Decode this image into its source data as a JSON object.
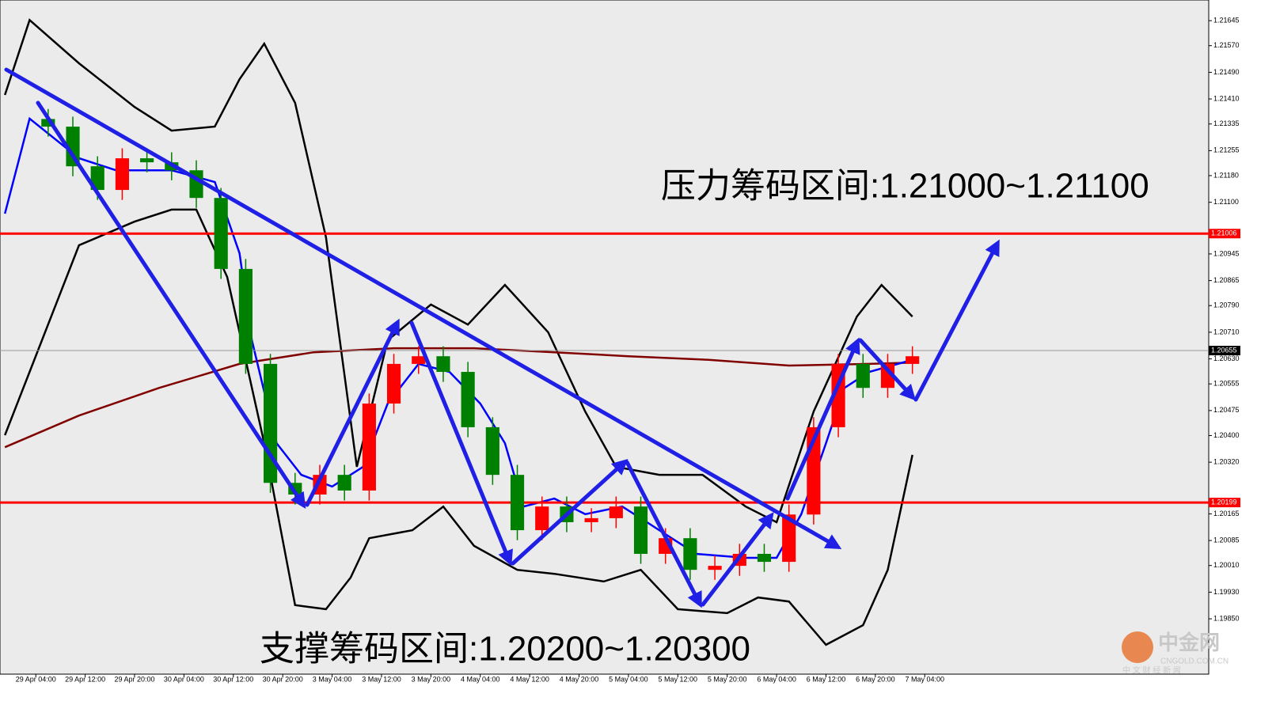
{
  "chart_data": {
    "type": "candlestick",
    "ylim": [
      1.21707,
      1.19684
    ],
    "xlim": [
      -5.8,
      190
    ],
    "yticks": [
      1.21645,
      {
        "value": 1.2157,
        "label": "1.21570"
      },
      {
        "value": 1.2149,
        "label": "1.21490"
      },
      {
        "value": 1.2141,
        "label": "1.21410"
      },
      1.21335,
      1.21255,
      {
        "value": 1.2118,
        "label": "1.21180"
      },
      {
        "value": 1.211,
        "label": "1.21100"
      },
      1.20945,
      1.20865,
      {
        "value": 1.2079,
        "label": "1.20790"
      },
      {
        "value": 1.2071,
        "label": "1.20710"
      },
      {
        "value": 1.2063,
        "label": "1.20630"
      },
      1.20555,
      1.20475,
      {
        "value": 1.204,
        "label": "1.20400"
      },
      {
        "value": 1.2032,
        "label": "1.20320"
      },
      1.20165,
      1.20085,
      {
        "value": 1.2001,
        "label": "1.20010"
      },
      {
        "value": 1.1993,
        "label": "1.19930"
      },
      {
        "value": 1.1985,
        "label": "1.19850"
      }
    ],
    "xticks": [
      {
        "value": 0,
        "label": "29 Apr 04:00"
      },
      {
        "value": 8,
        "label": "29 Apr 12:00"
      },
      {
        "value": 16,
        "label": "29 Apr 20:00"
      },
      {
        "value": 24,
        "label": "30 Apr 04:00"
      },
      {
        "value": 32,
        "label": "30 Apr 12:00"
      },
      {
        "value": 40,
        "label": "30 Apr 20:00"
      },
      {
        "value": 48,
        "label": "3 May 04:00"
      },
      {
        "value": 56,
        "label": "3 May 12:00"
      },
      {
        "value": 64,
        "label": "3 May 20:00"
      },
      {
        "value": 72,
        "label": "4 May 04:00"
      },
      {
        "value": 80,
        "label": "4 May 12:00"
      },
      {
        "value": 88,
        "label": "4 May 20:00"
      },
      {
        "value": 96,
        "label": "5 May 04:00"
      },
      {
        "value": 104,
        "label": "5 May 12:00"
      },
      {
        "value": 112,
        "label": "5 May 20:00"
      },
      {
        "value": 120,
        "label": "6 May 04:00"
      },
      {
        "value": 128,
        "label": "6 May 12:00"
      },
      {
        "value": 136,
        "label": "6 May 20:00"
      },
      {
        "value": 144,
        "label": "7 May 04:00"
      }
    ],
    "up_color": "#ff0000",
    "down_color": "#008000",
    "candles": {
      "x": [
        2,
        6,
        10,
        14,
        18,
        22,
        26,
        30,
        34,
        38,
        42,
        46,
        50,
        54,
        58,
        62,
        66,
        70,
        74,
        78,
        82,
        86,
        90,
        94,
        98,
        102,
        106,
        110,
        114,
        118,
        122,
        126,
        130,
        134,
        138,
        142
      ],
      "open": [
        1.2135,
        1.21327,
        1.21208,
        1.21137,
        1.21232,
        1.2122,
        1.21196,
        1.21113,
        1.209,
        1.20615,
        1.20258,
        1.20223,
        1.20282,
        1.20235,
        1.20496,
        1.20615,
        1.20638,
        1.20591,
        1.20425,
        1.20282,
        1.20116,
        1.20187,
        1.2014,
        1.20152,
        1.20187,
        1.20045,
        1.20092,
        1.19997,
        1.20009,
        1.20045,
        1.20021,
        1.20163,
        1.20425,
        1.20615,
        1.20543,
        1.20615
      ],
      "high": [
        1.2138,
        1.21357,
        1.21238,
        1.21262,
        1.21262,
        1.2125,
        1.21226,
        1.21143,
        1.2093,
        1.20645,
        1.20288,
        1.20312,
        1.20312,
        1.20526,
        1.20645,
        1.20668,
        1.20668,
        1.20621,
        1.20455,
        1.20312,
        1.20217,
        1.20217,
        1.20182,
        1.20217,
        1.20217,
        1.20122,
        1.20122,
        1.20039,
        1.20075,
        1.20075,
        1.20193,
        1.20455,
        1.20645,
        1.20645,
        1.20645,
        1.20668
      ],
      "low": [
        1.21297,
        1.21178,
        1.21107,
        1.21107,
        1.2119,
        1.21166,
        1.21083,
        1.2087,
        1.20585,
        1.20228,
        1.20193,
        1.20193,
        1.20205,
        1.20205,
        1.20466,
        1.20585,
        1.20561,
        1.20395,
        1.20252,
        1.20086,
        1.20086,
        1.2011,
        1.2011,
        1.20122,
        1.20015,
        1.20015,
        1.19967,
        1.19967,
        1.19979,
        1.19991,
        1.19991,
        1.20133,
        1.20395,
        1.20513,
        1.20513,
        1.20585
      ],
      "close": [
        1.21327,
        1.21208,
        1.21137,
        1.21232,
        1.2122,
        1.21196,
        1.21113,
        1.209,
        1.20615,
        1.20258,
        1.20223,
        1.20282,
        1.20235,
        1.20496,
        1.20615,
        1.20638,
        1.20591,
        1.20425,
        1.20282,
        1.20116,
        1.20187,
        1.2014,
        1.20152,
        1.20187,
        1.20045,
        1.20092,
        1.19997,
        1.20009,
        1.20045,
        1.20021,
        1.20163,
        1.20425,
        1.20615,
        1.20543,
        1.20615,
        1.20638
      ]
    },
    "lines": [
      {
        "color": "#000000",
        "x": [
          -5,
          -1,
          7,
          16,
          22,
          29,
          33,
          37,
          42,
          47,
          52,
          57,
          64,
          70,
          76,
          83,
          89,
          94,
          101,
          108,
          115,
          120,
          126,
          133,
          137,
          142
        ],
        "values": [
          1.21422,
          1.21647,
          1.21517,
          1.21386,
          1.21315,
          1.21327,
          1.21469,
          1.21576,
          1.21398,
          1.20995,
          1.20306,
          1.20686,
          1.20793,
          1.20733,
          1.20852,
          1.2071,
          1.20472,
          1.20306,
          1.20282,
          1.20282,
          1.20187,
          1.2014,
          1.20472,
          1.20757,
          1.20852,
          1.20757
        ]
      },
      {
        "color": "#000000",
        "x": [
          -5,
          -1,
          7,
          16,
          22,
          26,
          31,
          37,
          42,
          47,
          51,
          54,
          61,
          66,
          71,
          78,
          84,
          92,
          98,
          104,
          112,
          117,
          122,
          128,
          134,
          138,
          142
        ],
        "values": [
          1.20401,
          1.20591,
          1.20971,
          1.21042,
          1.21078,
          1.21078,
          1.20876,
          1.20377,
          1.19891,
          1.19879,
          1.19974,
          1.20092,
          1.20116,
          1.20187,
          1.20069,
          1.19997,
          1.19985,
          1.19962,
          1.19997,
          1.19879,
          1.19867,
          1.19914,
          1.19902,
          1.19772,
          1.19831,
          1.19997,
          1.20342
        ]
      },
      {
        "color": "#800000",
        "x": [
          -5,
          7,
          20,
          33,
          45,
          58,
          71,
          84,
          96,
          109,
          122,
          135,
          142
        ],
        "values": [
          1.20365,
          1.2046,
          1.20543,
          1.20615,
          1.2065,
          1.20662,
          1.20662,
          1.2065,
          1.20638,
          1.20627,
          1.2061,
          1.20615,
          1.20619
        ]
      },
      {
        "color": "#0000ff",
        "x": [
          -5,
          -1,
          7,
          13,
          22,
          29,
          33,
          35,
          39,
          43,
          48,
          53,
          57,
          62,
          67,
          72,
          76,
          79,
          84,
          89,
          95,
          99,
          103,
          107,
          115,
          120,
          124,
          128,
          131,
          135,
          142
        ],
        "values": [
          1.21066,
          1.21351,
          1.21232,
          1.21196,
          1.21196,
          1.21161,
          1.20947,
          1.20686,
          1.20377,
          1.20282,
          1.20247,
          1.20306,
          1.20496,
          1.20615,
          1.20591,
          1.20496,
          1.20377,
          1.20187,
          1.20211,
          1.20164,
          1.20187,
          1.2014,
          1.20092,
          1.20045,
          1.20033,
          1.20033,
          1.20164,
          1.20377,
          1.20543,
          1.20591,
          1.20627
        ]
      }
    ],
    "levels": [
      {
        "value": 1.21006,
        "color": "#ff0000"
      },
      {
        "value": 1.20199,
        "color": "#ff0000"
      }
    ],
    "current_price": 1.20655,
    "annotations": [
      "压力筹码区间:1.21000~1.21100",
      "支撑筹码区间:1.20200~1.20300"
    ],
    "watermark": {
      "logo": "中金网",
      "site": "CNGOLD.COM.CN",
      "slogan": "中 文 财 经 新 闻"
    }
  }
}
